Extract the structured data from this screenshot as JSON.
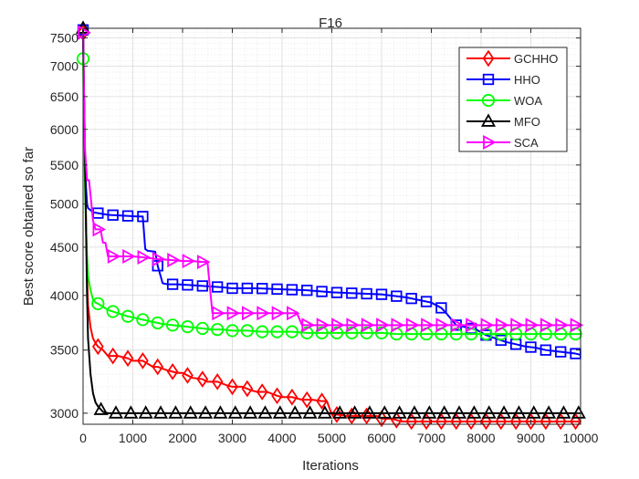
{
  "chart_data": {
    "type": "line",
    "title": "F16",
    "xlabel": "Iterations",
    "ylabel": "Best score obtained so far",
    "xlim": [
      0,
      10000
    ],
    "ylim_log": [
      2920,
      7680
    ],
    "y_scale": "log",
    "grid": true,
    "legend_position": "top-right",
    "xticks": [
      0,
      1000,
      2000,
      3000,
      4000,
      5000,
      6000,
      7000,
      8000,
      9000,
      10000
    ],
    "yticks": [
      3000,
      3500,
      4000,
      4500,
      5000,
      5500,
      6000,
      6500,
      7000,
      7500
    ],
    "series": [
      {
        "name": "GCHHO",
        "color": "#ff0000",
        "marker": "diamond",
        "x": [
          0,
          20,
          40,
          60,
          80,
          100,
          150,
          200,
          250,
          300,
          400,
          500,
          700,
          900,
          1000,
          1200,
          1400,
          1500,
          1700,
          1900,
          2000,
          2200,
          2400,
          2500,
          2700,
          2900,
          3000,
          3200,
          3400,
          3500,
          3700,
          3900,
          4000,
          4200,
          4400,
          4600,
          4800,
          4900,
          5000,
          5100,
          5300,
          5500,
          5700,
          5900,
          6000,
          6200,
          6400,
          6600,
          6800,
          7000,
          7200,
          7400,
          7600,
          7800,
          8000,
          8200,
          8400,
          8600,
          8800,
          9000,
          9200,
          9400,
          9600,
          9800,
          10000
        ],
        "y": [
          7600,
          6500,
          5600,
          4800,
          4200,
          3900,
          3700,
          3600,
          3560,
          3530,
          3500,
          3450,
          3450,
          3430,
          3410,
          3410,
          3360,
          3360,
          3330,
          3310,
          3310,
          3270,
          3260,
          3240,
          3240,
          3210,
          3200,
          3200,
          3170,
          3160,
          3160,
          3130,
          3120,
          3120,
          3100,
          3100,
          3090,
          3090,
          2990,
          2990,
          2980,
          2980,
          2980,
          2980,
          2960,
          2960,
          2940,
          2940,
          2940,
          2940,
          2940,
          2940,
          2940,
          2940,
          2940,
          2940,
          2940,
          2940,
          2940,
          2940,
          2940,
          2940,
          2940,
          2940,
          2940
        ]
      },
      {
        "name": "HHO",
        "color": "#0000ff",
        "marker": "square",
        "x": [
          0,
          20,
          40,
          60,
          80,
          100,
          200,
          300,
          400,
          500,
          800,
          1100,
          1200,
          1250,
          1300,
          1450,
          1500,
          1600,
          1700,
          1900,
          2200,
          2500,
          2800,
          3000,
          3500,
          4000,
          4500,
          5000,
          5500,
          6000,
          6500,
          6800,
          7000,
          7200,
          7300,
          7500,
          7700,
          7900,
          8100,
          8300,
          8500,
          8700,
          8900,
          9100,
          9300,
          9500,
          9700,
          9900,
          10000
        ],
        "y": [
          7650,
          6300,
          5500,
          5200,
          5000,
          4950,
          4900,
          4890,
          4880,
          4870,
          4860,
          4850,
          4850,
          4480,
          4460,
          4450,
          4300,
          4120,
          4110,
          4110,
          4100,
          4090,
          4080,
          4070,
          4070,
          4060,
          4050,
          4030,
          4020,
          4010,
          3980,
          3950,
          3930,
          3880,
          3830,
          3720,
          3700,
          3680,
          3630,
          3600,
          3570,
          3550,
          3530,
          3520,
          3500,
          3490,
          3480,
          3470,
          3460
        ]
      },
      {
        "name": "WOA",
        "color": "#00ff00",
        "marker": "circle",
        "x": [
          0,
          20,
          40,
          60,
          80,
          100,
          150,
          200,
          250,
          300,
          400,
          500,
          700,
          900,
          1000,
          1200,
          1400,
          1600,
          1800,
          2000,
          2200,
          2400,
          2600,
          2800,
          3000,
          3300,
          3600,
          3900,
          4200,
          4500,
          4800,
          5100,
          5400,
          5700,
          6000,
          6300,
          6600,
          6900,
          7200,
          7500,
          7800,
          8100,
          8400,
          8700,
          9000,
          9300,
          9600,
          10000
        ],
        "y": [
          7130,
          6000,
          5200,
          4700,
          4400,
          4200,
          4050,
          3960,
          3930,
          3920,
          3890,
          3860,
          3830,
          3800,
          3790,
          3770,
          3750,
          3730,
          3720,
          3710,
          3700,
          3690,
          3680,
          3680,
          3670,
          3670,
          3660,
          3660,
          3660,
          3650,
          3650,
          3650,
          3650,
          3650,
          3650,
          3640,
          3640,
          3640,
          3640,
          3640,
          3640,
          3640,
          3640,
          3640,
          3640,
          3640,
          3640,
          3640
        ]
      },
      {
        "name": "MFO",
        "color": "#000000",
        "marker": "triangle-up",
        "x": [
          0,
          20,
          40,
          60,
          80,
          100,
          150,
          200,
          250,
          300,
          400,
          500,
          1000,
          2000,
          3000,
          4000,
          5000,
          6000,
          7000,
          8000,
          9000,
          10000
        ],
        "y": [
          7680,
          6500,
          5500,
          4700,
          4000,
          3600,
          3300,
          3150,
          3080,
          3050,
          3010,
          3000,
          3000,
          3000,
          3000,
          3000,
          3000,
          3000,
          3000,
          3000,
          3000,
          3000
        ]
      },
      {
        "name": "SCA",
        "color": "#ff00ff",
        "marker": "triangle-right",
        "x": [
          0,
          20,
          40,
          80,
          120,
          160,
          200,
          250,
          300,
          350,
          400,
          450,
          500,
          800,
          1000,
          1200,
          1500,
          1800,
          2000,
          2200,
          2400,
          2500,
          2600,
          2800,
          3000,
          3300,
          3600,
          3900,
          4200,
          4300,
          4400,
          4700,
          5000,
          5300,
          5600,
          5900,
          6200,
          6500,
          6800,
          7100,
          7400,
          7700,
          8000,
          8300,
          8600,
          8900,
          9200,
          9500,
          9800,
          10000
        ],
        "y": [
          7600,
          6500,
          5700,
          5300,
          5300,
          5050,
          4800,
          4700,
          4700,
          4700,
          4550,
          4550,
          4400,
          4400,
          4400,
          4390,
          4370,
          4360,
          4350,
          4350,
          4340,
          4340,
          3830,
          3830,
          3830,
          3830,
          3830,
          3830,
          3830,
          3830,
          3720,
          3720,
          3720,
          3720,
          3720,
          3720,
          3720,
          3720,
          3720,
          3720,
          3720,
          3720,
          3720,
          3720,
          3720,
          3720,
          3720,
          3720,
          3720,
          3720
        ]
      }
    ]
  }
}
